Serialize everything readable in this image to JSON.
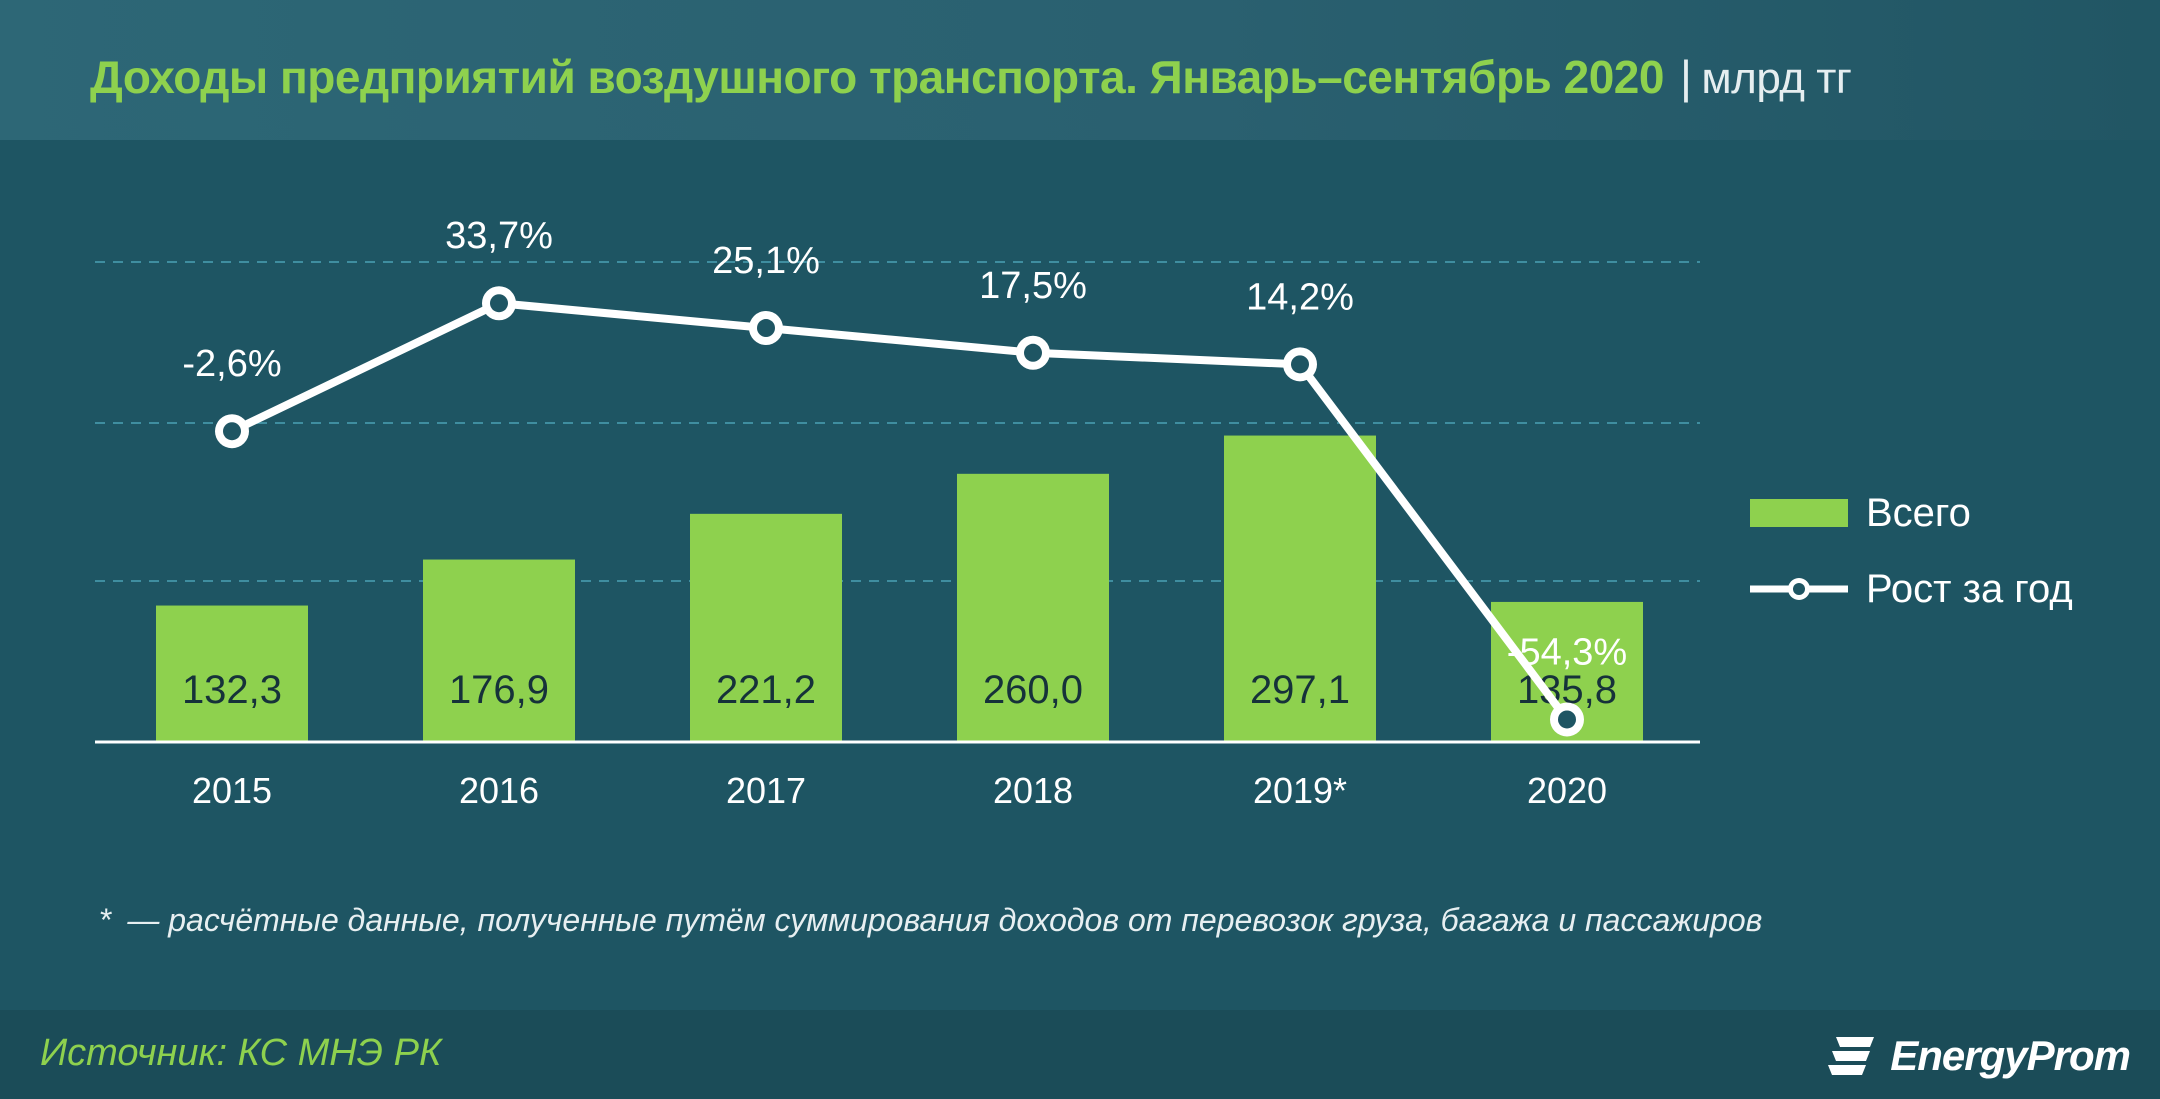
{
  "header": {
    "title": "Доходы предприятий воздушного транспорта. Январь–сентябрь 2020",
    "separator": "|",
    "unit": "млрд тг"
  },
  "colors": {
    "background": "#1e5563",
    "bar": "#8ed14e",
    "line": "#ffffff",
    "title": "#8ed14e",
    "grid": "#3f8ea0"
  },
  "chart_data": {
    "type": "bar",
    "categories": [
      "2015",
      "2016",
      "2017",
      "2018",
      "2019*",
      "2020"
    ],
    "ylim": [
      0,
      540
    ],
    "grid": "dashed-horizontal",
    "series": [
      {
        "name": "Всего",
        "type": "bar",
        "values": [
          132.3,
          176.9,
          221.2,
          260.0,
          297.1,
          135.8
        ],
        "labels": [
          "132,3",
          "176,9",
          "221,2",
          "260,0",
          "297,1",
          "135,8"
        ]
      },
      {
        "name": "Рост за год",
        "type": "line",
        "values": [
          -2.6,
          33.7,
          25.1,
          17.5,
          14.2,
          -54.3
        ],
        "labels": [
          "-2,6%",
          "33,7%",
          "25,1%",
          "17,5%",
          "14,2%",
          "-54,3%"
        ]
      }
    ],
    "legend_position": "right"
  },
  "legend": {
    "bar_label": "Всего",
    "line_label": "Рост за год"
  },
  "footnote": {
    "star": "*",
    "text": "— расчётные данные, полученные путём суммирования доходов от перевозок груза, багажа и пассажиров"
  },
  "footer": {
    "source": "Источник: КС МНЭ РК",
    "logo_text": "EnergyProm",
    "logo_icon": "energyprom-logo-icon"
  }
}
